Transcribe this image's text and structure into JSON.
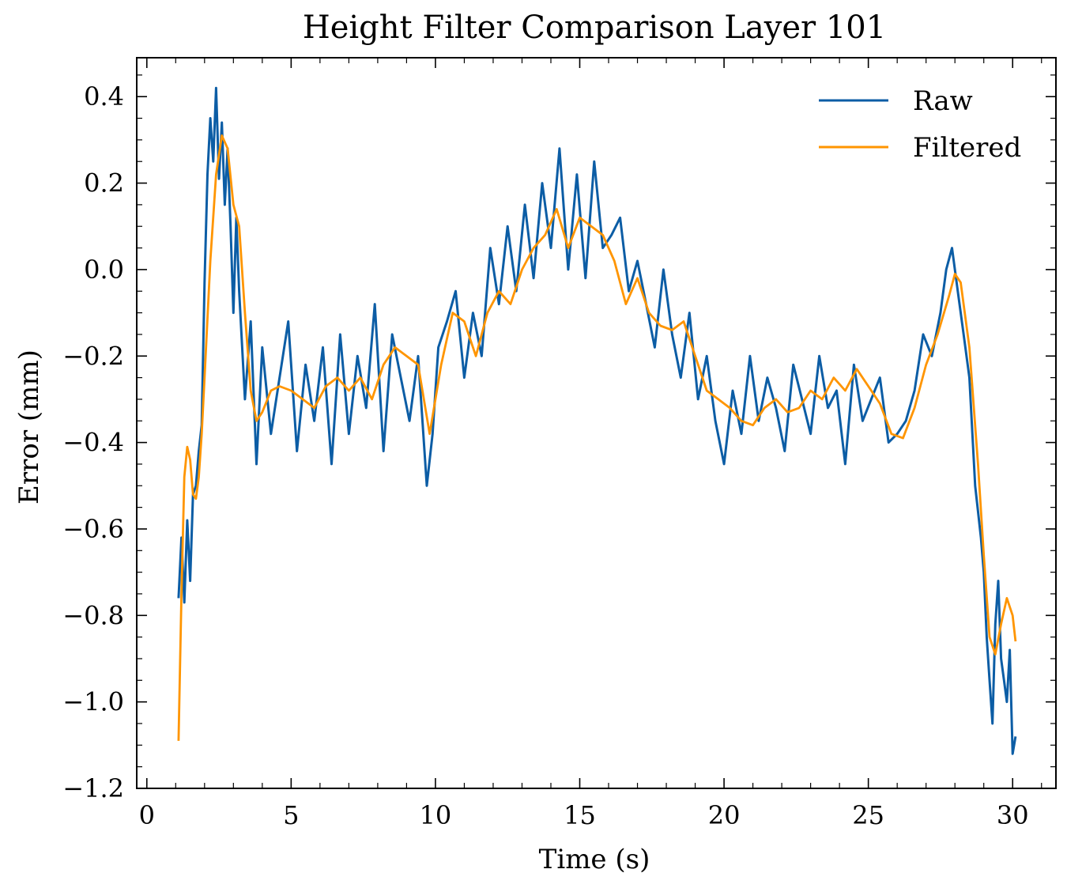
{
  "chart_data": {
    "type": "line",
    "title": "Height Filter Comparison Layer 101",
    "xlabel": "Time (s)",
    "ylabel": "Error (mm)",
    "xlim": [
      -0.35,
      31.5
    ],
    "ylim": [
      -1.2,
      0.49
    ],
    "x_ticks": [
      0,
      5,
      10,
      15,
      20,
      25,
      30
    ],
    "x_tick_labels": [
      "0",
      "5",
      "10",
      "15",
      "20",
      "25",
      "30"
    ],
    "y_ticks": [
      -1.2,
      -1.0,
      -0.8,
      -0.6,
      -0.4,
      -0.2,
      0.0,
      0.2,
      0.4
    ],
    "y_tick_labels": [
      "−1.2",
      "−1.0",
      "−0.8",
      "−0.6",
      "−0.4",
      "−0.2",
      "0.0",
      "0.2",
      "0.4"
    ],
    "grid": false,
    "legend_position": "top-right",
    "series": [
      {
        "name": "Raw",
        "color": "#0c5da5",
        "x": [
          1.1,
          1.2,
          1.3,
          1.4,
          1.5,
          1.6,
          1.7,
          1.8,
          1.9,
          2.0,
          2.1,
          2.2,
          2.3,
          2.4,
          2.5,
          2.6,
          2.7,
          2.8,
          2.9,
          3.0,
          3.1,
          3.2,
          3.4,
          3.6,
          3.8,
          4.0,
          4.3,
          4.6,
          4.9,
          5.2,
          5.5,
          5.8,
          6.1,
          6.4,
          6.7,
          7.0,
          7.3,
          7.6,
          7.9,
          8.2,
          8.5,
          8.8,
          9.1,
          9.4,
          9.7,
          9.9,
          10.1,
          10.4,
          10.7,
          11.0,
          11.3,
          11.6,
          11.9,
          12.2,
          12.5,
          12.8,
          13.1,
          13.4,
          13.7,
          14.0,
          14.3,
          14.6,
          14.9,
          15.2,
          15.5,
          15.8,
          16.1,
          16.4,
          16.7,
          17.0,
          17.3,
          17.6,
          17.9,
          18.2,
          18.5,
          18.8,
          19.1,
          19.4,
          19.7,
          20.0,
          20.3,
          20.6,
          20.9,
          21.2,
          21.5,
          21.8,
          22.1,
          22.4,
          22.7,
          23.0,
          23.3,
          23.6,
          23.9,
          24.2,
          24.5,
          24.8,
          25.1,
          25.4,
          25.7,
          26.0,
          26.3,
          26.6,
          26.9,
          27.2,
          27.5,
          27.7,
          27.9,
          28.1,
          28.3,
          28.5,
          28.7,
          28.9,
          29.0,
          29.1,
          29.2,
          29.3,
          29.4,
          29.5,
          29.6,
          29.7,
          29.8,
          29.9,
          30.0,
          30.1
        ],
        "y": [
          -0.76,
          -0.62,
          -0.77,
          -0.58,
          -0.72,
          -0.52,
          -0.5,
          -0.42,
          -0.36,
          -0.03,
          0.22,
          0.35,
          0.25,
          0.42,
          0.21,
          0.34,
          0.15,
          0.28,
          0.1,
          -0.1,
          0.12,
          -0.05,
          -0.3,
          -0.12,
          -0.45,
          -0.18,
          -0.38,
          -0.25,
          -0.12,
          -0.42,
          -0.22,
          -0.35,
          -0.18,
          -0.45,
          -0.15,
          -0.38,
          -0.2,
          -0.32,
          -0.08,
          -0.42,
          -0.15,
          -0.25,
          -0.35,
          -0.2,
          -0.5,
          -0.38,
          -0.18,
          -0.12,
          -0.05,
          -0.25,
          -0.1,
          -0.2,
          0.05,
          -0.08,
          0.1,
          -0.05,
          0.15,
          -0.02,
          0.2,
          0.05,
          0.28,
          0.0,
          0.22,
          -0.02,
          0.25,
          0.05,
          0.08,
          0.12,
          -0.05,
          0.02,
          -0.08,
          -0.18,
          0.0,
          -0.15,
          -0.25,
          -0.1,
          -0.3,
          -0.2,
          -0.35,
          -0.45,
          -0.28,
          -0.38,
          -0.2,
          -0.35,
          -0.25,
          -0.32,
          -0.42,
          -0.22,
          -0.3,
          -0.38,
          -0.2,
          -0.32,
          -0.28,
          -0.45,
          -0.22,
          -0.35,
          -0.3,
          -0.25,
          -0.4,
          -0.38,
          -0.35,
          -0.28,
          -0.15,
          -0.2,
          -0.1,
          0.0,
          0.05,
          -0.05,
          -0.15,
          -0.25,
          -0.5,
          -0.62,
          -0.7,
          -0.85,
          -0.95,
          -1.05,
          -0.82,
          -0.72,
          -0.9,
          -0.95,
          -1.0,
          -0.88,
          -1.12,
          -1.08
        ]
      },
      {
        "name": "Filtered",
        "color": "#ff9500",
        "x": [
          1.1,
          1.2,
          1.3,
          1.4,
          1.5,
          1.6,
          1.7,
          1.8,
          1.9,
          2.0,
          2.2,
          2.4,
          2.6,
          2.8,
          3.0,
          3.2,
          3.4,
          3.6,
          3.8,
          4.0,
          4.3,
          4.6,
          5.0,
          5.4,
          5.8,
          6.2,
          6.6,
          7.0,
          7.4,
          7.8,
          8.2,
          8.6,
          9.0,
          9.4,
          9.8,
          10.2,
          10.6,
          11.0,
          11.4,
          11.8,
          12.2,
          12.6,
          13.0,
          13.4,
          13.8,
          14.2,
          14.6,
          15.0,
          15.4,
          15.8,
          16.2,
          16.6,
          17.0,
          17.4,
          17.8,
          18.2,
          18.6,
          19.0,
          19.4,
          19.8,
          20.2,
          20.6,
          21.0,
          21.4,
          21.8,
          22.2,
          22.6,
          23.0,
          23.4,
          23.8,
          24.2,
          24.6,
          25.0,
          25.4,
          25.8,
          26.2,
          26.6,
          27.0,
          27.4,
          27.8,
          28.0,
          28.2,
          28.5,
          28.8,
          29.0,
          29.2,
          29.4,
          29.6,
          29.8,
          30.0,
          30.1
        ],
        "y": [
          -1.09,
          -0.75,
          -0.48,
          -0.41,
          -0.44,
          -0.52,
          -0.53,
          -0.48,
          -0.38,
          -0.25,
          0.02,
          0.22,
          0.31,
          0.28,
          0.15,
          0.1,
          -0.1,
          -0.28,
          -0.35,
          -0.33,
          -0.28,
          -0.27,
          -0.28,
          -0.3,
          -0.32,
          -0.27,
          -0.25,
          -0.28,
          -0.25,
          -0.3,
          -0.22,
          -0.18,
          -0.2,
          -0.22,
          -0.38,
          -0.22,
          -0.1,
          -0.12,
          -0.2,
          -0.1,
          -0.05,
          -0.08,
          0.0,
          0.05,
          0.08,
          0.14,
          0.05,
          0.12,
          0.1,
          0.08,
          0.02,
          -0.08,
          -0.02,
          -0.1,
          -0.13,
          -0.14,
          -0.12,
          -0.2,
          -0.28,
          -0.3,
          -0.32,
          -0.35,
          -0.36,
          -0.32,
          -0.3,
          -0.33,
          -0.32,
          -0.28,
          -0.3,
          -0.25,
          -0.28,
          -0.23,
          -0.27,
          -0.31,
          -0.38,
          -0.39,
          -0.32,
          -0.22,
          -0.15,
          -0.06,
          -0.01,
          -0.03,
          -0.18,
          -0.45,
          -0.66,
          -0.85,
          -0.89,
          -0.82,
          -0.76,
          -0.8,
          -0.86
        ]
      }
    ]
  }
}
